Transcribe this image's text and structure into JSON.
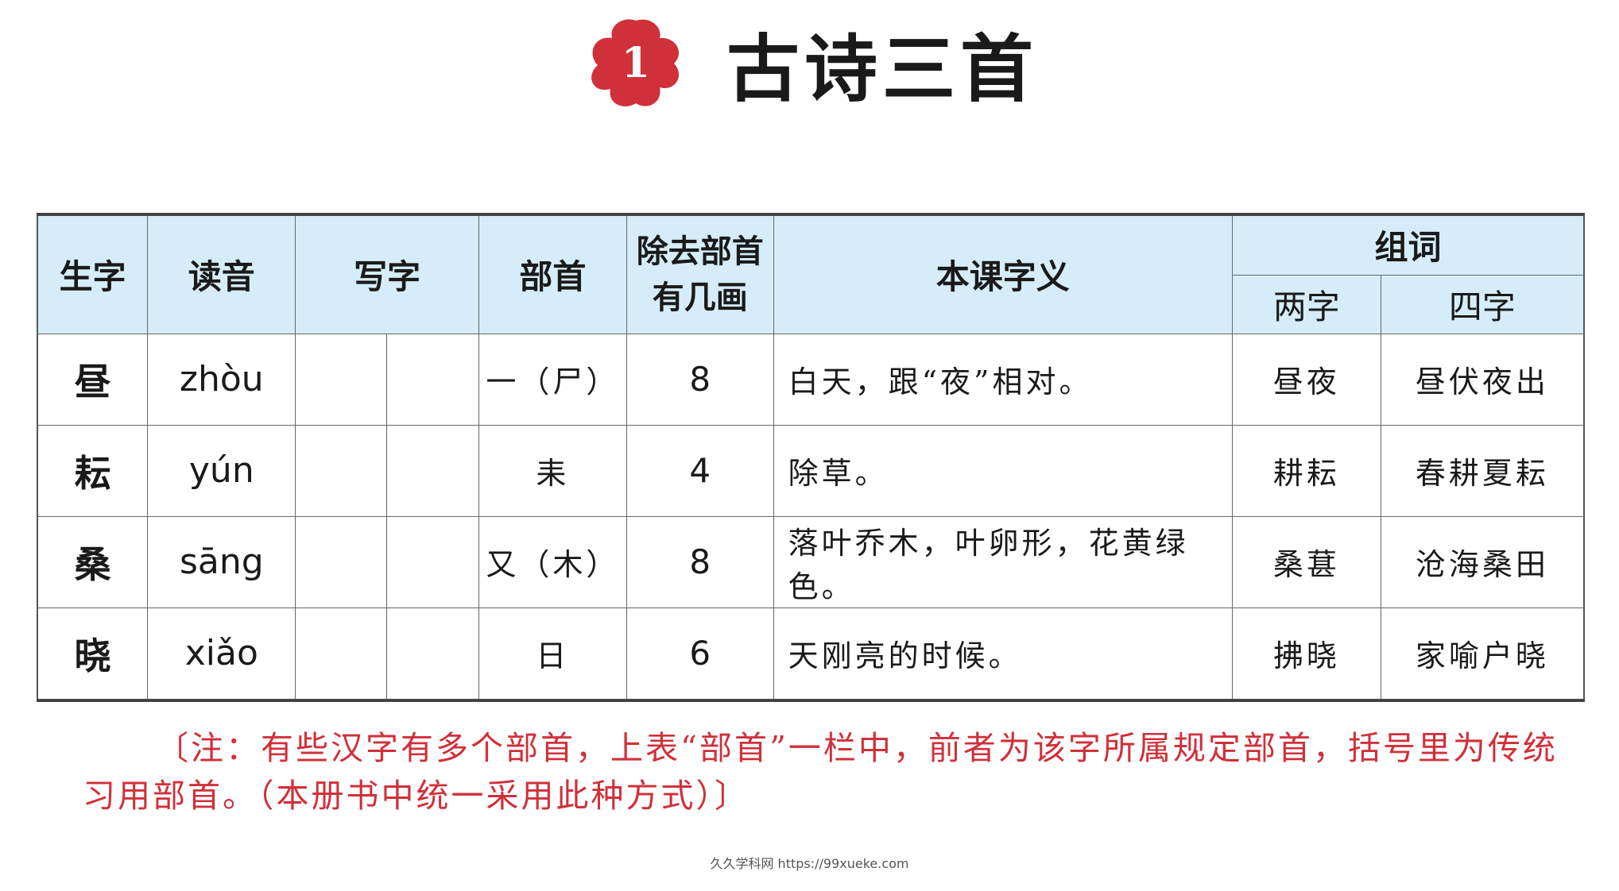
{
  "lesson": {
    "number": "1",
    "title": "古诗三首",
    "badge_color": "#d0303a"
  },
  "table": {
    "headers": {
      "char": "生字",
      "pinyin": "读音",
      "write": "写字",
      "radical": "部首",
      "strokes_line1": "除去部首",
      "strokes_line2": "有几画",
      "meaning": "本课字义",
      "words": "组词",
      "two_char": "两字",
      "four_char": "四字"
    },
    "header_bg": "#d6edf9",
    "rows": [
      {
        "char": "昼",
        "pinyin": "zhòu",
        "radical": "一（尸）",
        "strokes": "8",
        "meaning": "白天，跟“夜”相对。",
        "two": "昼夜",
        "four": "昼伏夜出"
      },
      {
        "char": "耘",
        "pinyin": "yún",
        "radical": "耒",
        "strokes": "4",
        "meaning": "除草。",
        "two": "耕耘",
        "four": "春耕夏耘"
      },
      {
        "char": "桑",
        "pinyin": "sāng",
        "radical": "又（木）",
        "strokes": "8",
        "meaning": "落叶乔木，叶卵形，花黄绿色。",
        "two": "桑葚",
        "four": "沧海桑田"
      },
      {
        "char": "晓",
        "pinyin": "xiǎo",
        "radical": "日",
        "strokes": "6",
        "meaning": "天刚亮的时候。",
        "two": "拂晓",
        "four": "家喻户晓"
      }
    ]
  },
  "note": "〔注：有些汉字有多个部首，上表“部首”一栏中，前者为该字所属规定部首，括号里为传统习用部首。（本册书中统一采用此种方式）〕",
  "note_color": "#d0303a",
  "footer": "久久学科网 https://99xueke.com"
}
